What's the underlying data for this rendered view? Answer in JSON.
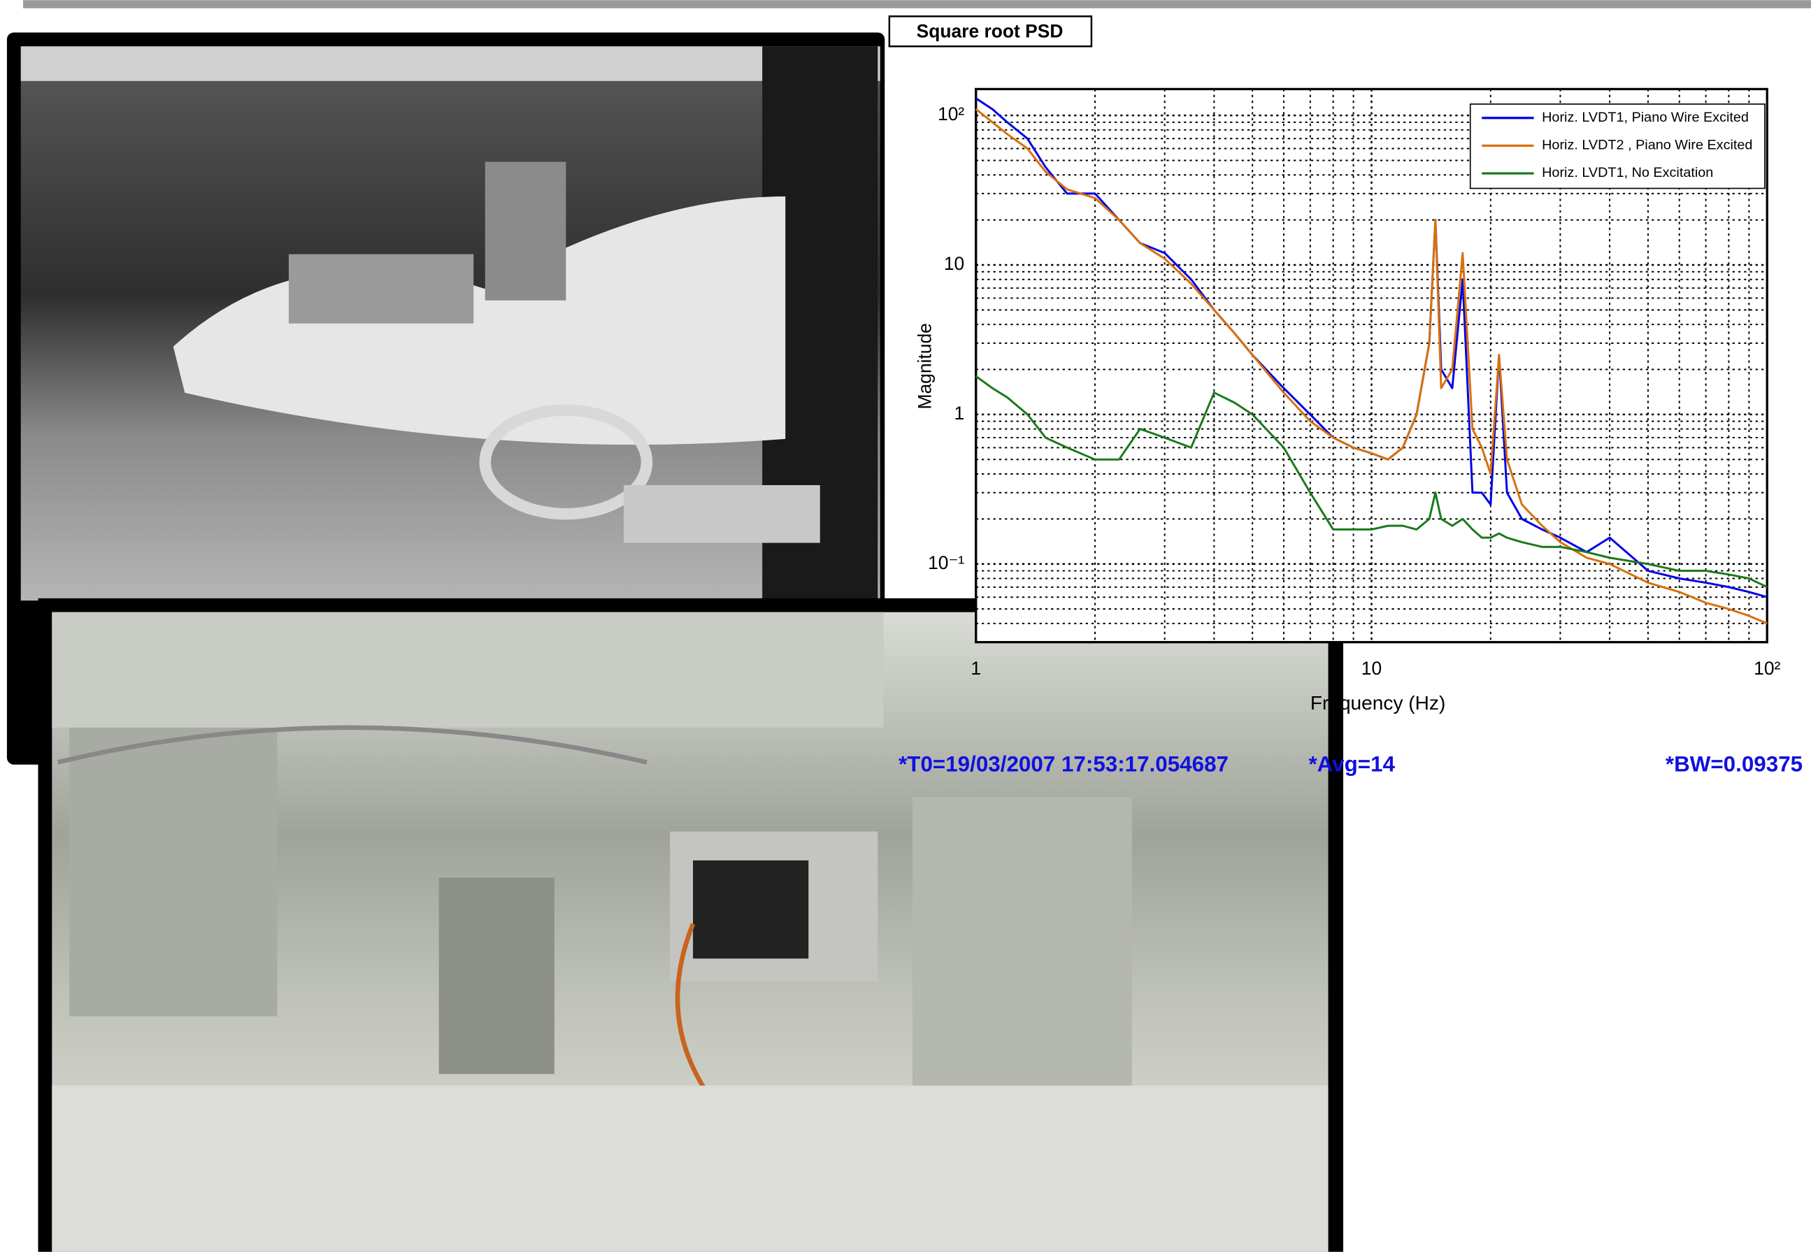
{
  "chart_data": {
    "type": "line",
    "title": "Square root PSD",
    "x_label": "Frequency (Hz)",
    "y_label": "Magnitude",
    "log_x": true,
    "log_y": true,
    "grid": true,
    "minor_grid": true,
    "legend": "upper right",
    "xlim": [
      1,
      100
    ],
    "ylim": [
      0.03,
      150
    ],
    "xticks": [
      1,
      10,
      {
        "value": 100,
        "label": "10²"
      }
    ],
    "yticks": [
      {
        "value": 0.1,
        "label": "10⁻¹"
      },
      1,
      10,
      {
        "value": 100,
        "label": "10²"
      }
    ],
    "x": [
      1,
      1.1,
      1.2,
      1.35,
      1.5,
      1.7,
      2,
      2.3,
      2.6,
      3,
      3.5,
      4,
      4.5,
      5,
      6,
      7,
      8,
      9,
      10,
      11,
      12,
      13,
      14,
      14.5,
      15,
      16,
      17,
      18,
      19,
      20,
      21,
      22,
      24,
      27,
      30,
      35,
      40,
      50,
      60,
      70,
      80,
      90,
      100
    ],
    "series": [
      {
        "name": "Horiz. LVDT1, Piano Wire Excited",
        "color": "#0000e6",
        "values": [
          130,
          110,
          90,
          70,
          45,
          30,
          30,
          20,
          14,
          12,
          8,
          5,
          3.5,
          2.5,
          1.5,
          1,
          0.7,
          0.6,
          0.55,
          0.5,
          0.6,
          1,
          3,
          20,
          2,
          1.5,
          8,
          0.3,
          0.3,
          0.25,
          2.5,
          0.3,
          0.2,
          0.17,
          0.15,
          0.12,
          0.15,
          0.09,
          0.08,
          0.075,
          0.07,
          0.065,
          0.06
        ]
      },
      {
        "name": "Horiz. LVDT2 , Piano Wire Excited",
        "color": "#d9700a",
        "values": [
          110,
          90,
          75,
          60,
          42,
          32,
          28,
          20,
          14,
          11,
          7.5,
          5,
          3.5,
          2.5,
          1.4,
          0.9,
          0.7,
          0.6,
          0.55,
          0.5,
          0.6,
          1,
          3,
          20,
          1.5,
          2,
          12,
          0.8,
          0.6,
          0.4,
          2.5,
          0.5,
          0.25,
          0.18,
          0.14,
          0.11,
          0.1,
          0.075,
          0.065,
          0.055,
          0.05,
          0.045,
          0.04
        ]
      },
      {
        "name": "Horiz. LVDT1, No Excitation",
        "color": "#1a7a1a",
        "values": [
          1.8,
          1.5,
          1.3,
          1.0,
          0.7,
          0.6,
          0.5,
          0.5,
          0.8,
          0.7,
          0.6,
          1.4,
          1.2,
          1.0,
          0.6,
          0.3,
          0.17,
          0.17,
          0.17,
          0.18,
          0.18,
          0.17,
          0.2,
          0.3,
          0.2,
          0.18,
          0.2,
          0.17,
          0.15,
          0.15,
          0.16,
          0.15,
          0.14,
          0.13,
          0.13,
          0.12,
          0.11,
          0.1,
          0.09,
          0.09,
          0.085,
          0.08,
          0.07
        ]
      }
    ],
    "annotations": [
      "*T0=19/03/2007 17:53:17.054687",
      "*Avg=14",
      "*BW=0.09375"
    ]
  }
}
